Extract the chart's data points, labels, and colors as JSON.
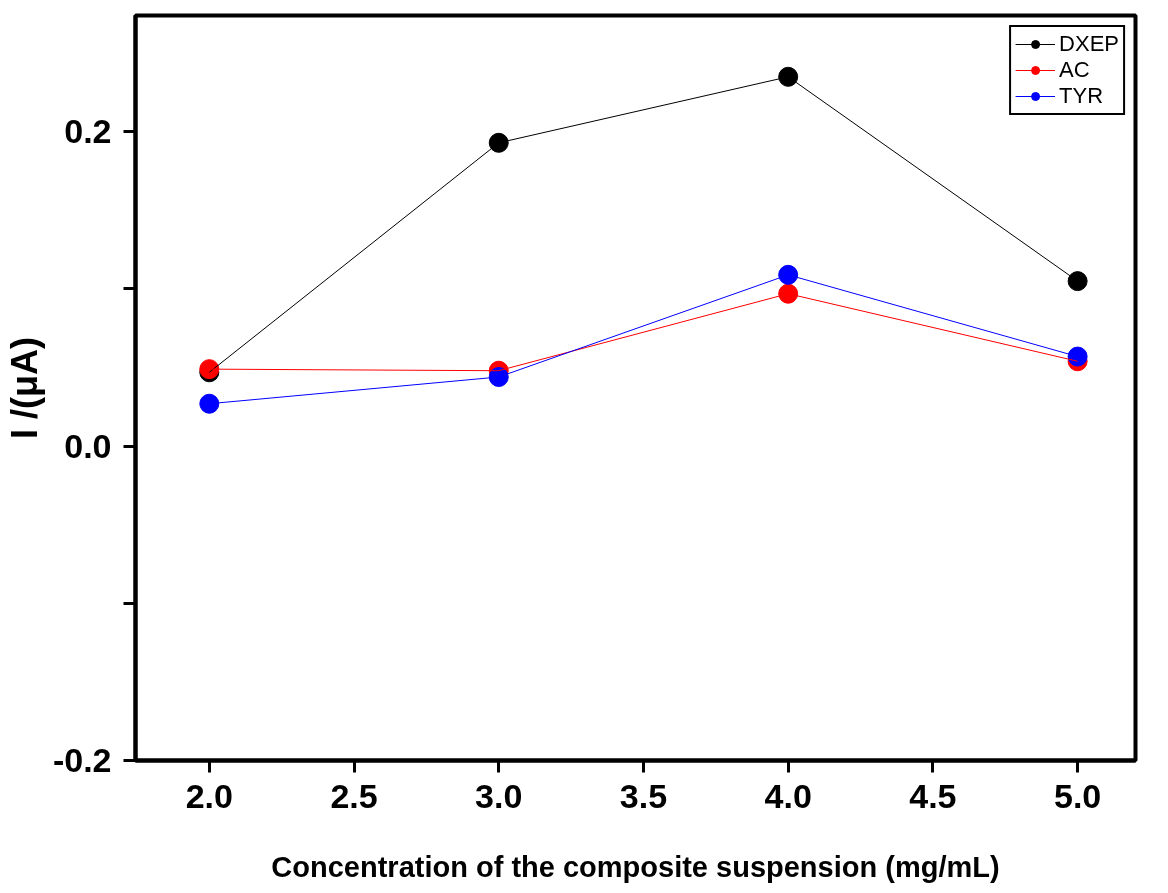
{
  "chart_data": {
    "type": "line",
    "xlabel": "Concentration of the composite suspension (mg/mL)",
    "ylabel": "I /(μA)",
    "x": [
      2.0,
      3.0,
      4.0,
      5.0
    ],
    "series": [
      {
        "name": "DXEP",
        "color": "#000000",
        "values": [
          0.047,
          0.193,
          0.235,
          0.105
        ]
      },
      {
        "name": "AC",
        "color": "#ff0000",
        "values": [
          0.049,
          0.048,
          0.097,
          0.054
        ]
      },
      {
        "name": "TYR",
        "color": "#0000ff",
        "values": [
          0.027,
          0.044,
          0.109,
          0.057
        ]
      }
    ],
    "xlim": [
      1.745,
      5.2
    ],
    "ylim": [
      -0.2,
      0.274
    ],
    "xticks": [
      {
        "value": 2.0,
        "label": "2.0"
      },
      {
        "value": 2.5,
        "label": "2.5"
      },
      {
        "value": 3.0,
        "label": "3.0"
      },
      {
        "value": 3.5,
        "label": "3.5"
      },
      {
        "value": 4.0,
        "label": "4.0"
      },
      {
        "value": 4.5,
        "label": "4.5"
      },
      {
        "value": 5.0,
        "label": "5.0"
      }
    ],
    "yticks": [
      {
        "value": -0.2,
        "label": "-0.2"
      },
      {
        "value": -0.1,
        "label": null
      },
      {
        "value": 0.0,
        "label": "0.0"
      },
      {
        "value": 0.1,
        "label": null
      },
      {
        "value": 0.2,
        "label": "0.2"
      }
    ],
    "legend": "top right",
    "marker": "circle",
    "line_style": "solid",
    "grid": false
  }
}
